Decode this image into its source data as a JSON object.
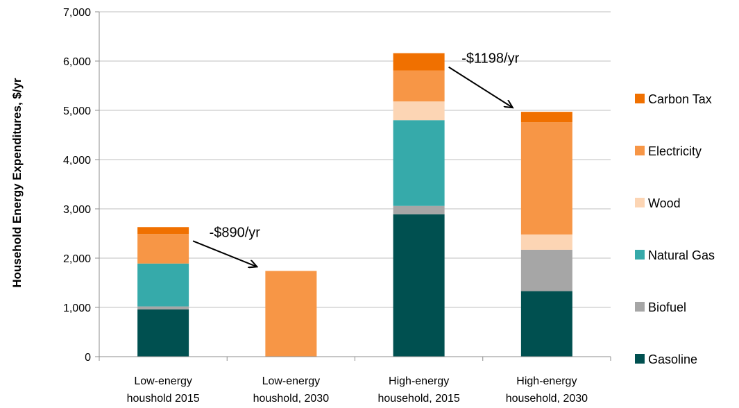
{
  "chart_data": {
    "type": "bar",
    "stacked": true,
    "ylabel": "Household Energy Expenditures, $/yr",
    "ylim": [
      0,
      7000
    ],
    "yticks": [
      0,
      1000,
      2000,
      3000,
      4000,
      5000,
      6000,
      7000
    ],
    "ytick_labels": [
      "0",
      "1,000",
      "2,000",
      "3,000",
      "4,000",
      "5,000",
      "6,000",
      "7,000"
    ],
    "grid": true,
    "legend_position": "right",
    "categories": [
      [
        "Low-energy",
        "houshold 2015"
      ],
      [
        "Low-energy",
        "houshold, 2030"
      ],
      [
        "High-energy",
        "household, 2015"
      ],
      [
        "High-energy",
        "household, 2030"
      ]
    ],
    "series": [
      {
        "name": "Gasoline",
        "color": "#005050",
        "values": [
          960,
          0,
          2890,
          1330
        ]
      },
      {
        "name": "Biofuel",
        "color": "#a6a6a6",
        "values": [
          60,
          0,
          170,
          840
        ]
      },
      {
        "name": "Natural Gas",
        "color": "#36aaaa",
        "values": [
          870,
          0,
          1740,
          0
        ]
      },
      {
        "name": "Wood",
        "color": "#fcd5b4",
        "values": [
          0,
          0,
          380,
          310
        ]
      },
      {
        "name": "Electricity",
        "color": "#f79646",
        "values": [
          600,
          1740,
          630,
          2280
        ]
      },
      {
        "name": "Carbon Tax",
        "color": "#f07000",
        "values": [
          140,
          0,
          350,
          210
        ]
      }
    ],
    "annotations": [
      {
        "text": "-$890/yr",
        "from_category": 0,
        "to_category": 1
      },
      {
        "text": "-$1198/yr",
        "from_category": 2,
        "to_category": 3
      }
    ]
  }
}
